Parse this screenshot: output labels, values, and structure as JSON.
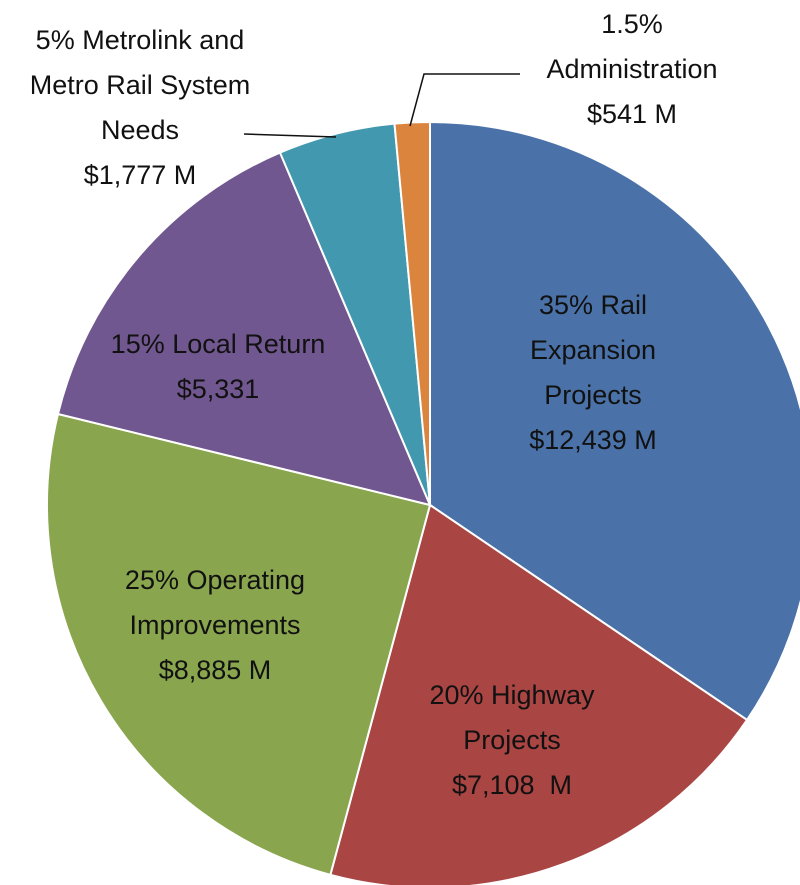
{
  "chart_data": {
    "type": "pie",
    "categories": [
      "Rail Expansion Projects",
      "Highway Projects",
      "Operating Improvements",
      "Local Return",
      "Metrolink and Metro Rail System Needs",
      "Administration"
    ],
    "values": [
      35,
      20,
      25,
      15,
      5,
      1.5
    ],
    "value_labels": [
      "35%",
      "20%",
      "25%",
      "15%",
      "5%",
      "1.5%"
    ],
    "amounts": [
      "$12,439 M",
      "$7,108  M",
      "$8,885 M",
      "$5,331",
      "$1,777 M",
      "$541 M"
    ],
    "colors": [
      "#4a72a8",
      "#a94543",
      "#89a54e",
      "#71578f",
      "#4198af",
      "#db843d"
    ]
  }
}
